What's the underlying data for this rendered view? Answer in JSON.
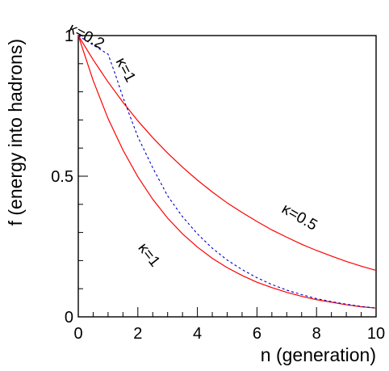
{
  "chart_data": {
    "type": "line",
    "title": "",
    "xlabel": "n (generation)",
    "ylabel": "f (energy into hadrons)",
    "xlim": [
      0,
      10
    ],
    "ylim": [
      0,
      1.0
    ],
    "grid": false,
    "x_ticks": [
      "0",
      "2",
      "4",
      "6",
      "8",
      "10"
    ],
    "y_ticks": [
      "0",
      "0.5",
      "1"
    ],
    "series": [
      {
        "name": "κ=0.5",
        "color": "#ff0000",
        "style": "solid",
        "x": [
          0,
          0.5,
          1,
          1.5,
          2,
          2.5,
          3,
          3.5,
          4,
          4.5,
          5,
          5.5,
          6,
          6.5,
          7,
          7.5,
          8,
          8.5,
          9,
          9.5,
          10
        ],
        "y": [
          1.0,
          0.914,
          0.835,
          0.763,
          0.697,
          0.637,
          0.582,
          0.532,
          0.486,
          0.444,
          0.405,
          0.371,
          0.339,
          0.309,
          0.283,
          0.258,
          0.236,
          0.216,
          0.197,
          0.18,
          0.165
        ]
      },
      {
        "name": "κ=1",
        "color": "#ff0000",
        "style": "solid",
        "x": [
          0,
          0.5,
          1,
          1.5,
          2,
          2.5,
          3,
          3.5,
          4,
          4.5,
          5,
          5.5,
          6,
          6.5,
          7,
          7.5,
          8,
          8.5,
          9,
          9.5,
          10
        ],
        "y": [
          1.0,
          0.84,
          0.705,
          0.593,
          0.498,
          0.418,
          0.351,
          0.295,
          0.248,
          0.208,
          0.175,
          0.147,
          0.123,
          0.104,
          0.087,
          0.073,
          0.061,
          0.052,
          0.043,
          0.036,
          0.031
        ]
      },
      {
        "name": "κ=0.2 / κ=1",
        "color": "#0000cc",
        "style": "dashed",
        "x": [
          0,
          0.25,
          0.5,
          0.75,
          1,
          1.25,
          1.5,
          2,
          2.5,
          3,
          3.5,
          4,
          4.5,
          5,
          5.5,
          6,
          6.5,
          7,
          7.5,
          8,
          8.5,
          9,
          9.5,
          10
        ],
        "y": [
          1.0,
          0.983,
          0.966,
          0.95,
          0.934,
          0.86,
          0.78,
          0.64,
          0.53,
          0.43,
          0.356,
          0.295,
          0.244,
          0.202,
          0.168,
          0.139,
          0.115,
          0.095,
          0.079,
          0.065,
          0.054,
          0.045,
          0.037,
          0.031
        ]
      }
    ],
    "annotations": [
      {
        "text": "κ=0.2",
        "x": 0.2,
        "y": 0.983,
        "color": "#000000"
      },
      {
        "text": "κ=1",
        "x": 1.45,
        "y": 0.87,
        "color": "#000000"
      },
      {
        "text": "κ=0.5",
        "x": 7.35,
        "y": 0.34,
        "color": "#000000"
      },
      {
        "text": "κ=1",
        "x": 2.25,
        "y": 0.21,
        "color": "#000000"
      }
    ]
  }
}
